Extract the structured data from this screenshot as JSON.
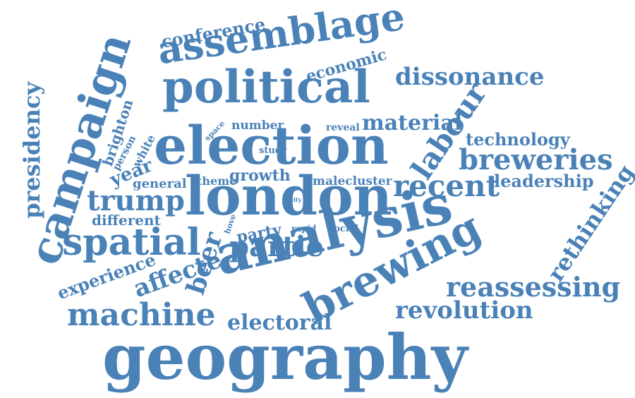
{
  "color": "#4a82b8",
  "words": [
    {
      "id": "geography",
      "text": "geography"
    },
    {
      "id": "analysis",
      "text": "analysis"
    },
    {
      "id": "london",
      "text": "london"
    },
    {
      "id": "election",
      "text": "election"
    },
    {
      "id": "campaign",
      "text": "campaign"
    },
    {
      "id": "political",
      "text": "political"
    },
    {
      "id": "brewing",
      "text": "brewing"
    },
    {
      "id": "assemblage",
      "text": "assemblage"
    },
    {
      "id": "spatial",
      "text": "spatial"
    },
    {
      "id": "dissonance",
      "text": "dissonance"
    },
    {
      "id": "breweries",
      "text": "breweries"
    },
    {
      "id": "recent",
      "text": "recent"
    },
    {
      "id": "labour",
      "text": "labour"
    },
    {
      "id": "machine",
      "text": "machine"
    },
    {
      "id": "reassessing",
      "text": "reassessing"
    },
    {
      "id": "revolution",
      "text": "revolution"
    },
    {
      "id": "presidency",
      "text": "presidency"
    },
    {
      "id": "trump",
      "text": "trump"
    },
    {
      "id": "partie",
      "text": "partie"
    },
    {
      "id": "material",
      "text": "material"
    },
    {
      "id": "electoral",
      "text": "electoral"
    },
    {
      "id": "affecte",
      "text": "affecte"
    },
    {
      "id": "beer",
      "text": "beer"
    },
    {
      "id": "rethinking",
      "text": "rethinking"
    },
    {
      "id": "technology",
      "text": "technology"
    },
    {
      "id": "leadership",
      "text": "leadership"
    },
    {
      "id": "conference",
      "text": "conference"
    },
    {
      "id": "experience",
      "text": "experience"
    },
    {
      "id": "economic",
      "text": "economic"
    },
    {
      "id": "growth",
      "text": "growth"
    },
    {
      "id": "year",
      "text": "year"
    },
    {
      "id": "brighton",
      "text": "brighton"
    },
    {
      "id": "party",
      "text": "party"
    },
    {
      "id": "different",
      "text": "different"
    },
    {
      "id": "general",
      "text": "general"
    },
    {
      "id": "number",
      "text": "number"
    },
    {
      "id": "malecluster",
      "text": "malecluster"
    },
    {
      "id": "theme",
      "text": "theme"
    },
    {
      "id": "white",
      "text": "white"
    },
    {
      "id": "person",
      "text": "person"
    },
    {
      "id": "reveal",
      "text": "reveal"
    },
    {
      "id": "study",
      "text": "study"
    },
    {
      "id": "social",
      "text": "social"
    },
    {
      "id": "rapid",
      "text": "rapid"
    },
    {
      "id": "space",
      "text": "space"
    },
    {
      "id": "hove",
      "text": "hove"
    },
    {
      "id": "city",
      "text": "city"
    }
  ]
}
